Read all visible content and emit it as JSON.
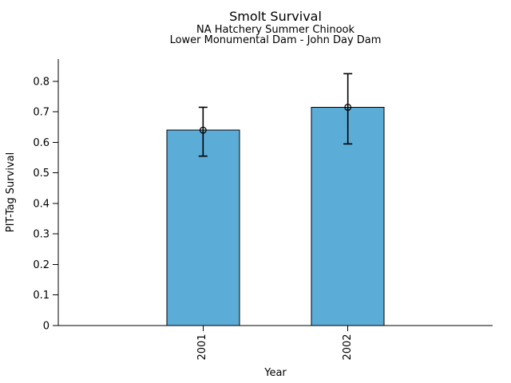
{
  "figure": {
    "background": "#ffffff",
    "text_color": "#000000"
  },
  "chart_data": {
    "type": "bar",
    "title": "Smolt Survival",
    "subtitle_lines": [
      "NA Hatchery Summer Chinook",
      "Lower Monumental Dam - John Day Dam"
    ],
    "xlabel": "Year",
    "ylabel": "PIT-Tag Survival",
    "categories": [
      "2001",
      "2002"
    ],
    "values": [
      0.64,
      0.715
    ],
    "error_low": [
      0.555,
      0.595
    ],
    "error_high": [
      0.715,
      0.825
    ],
    "ylim": [
      0,
      0.873
    ],
    "yticks": {
      "values": [
        0,
        0.1,
        0.2,
        0.3,
        0.4,
        0.5,
        0.6,
        0.7,
        0.8
      ],
      "labels": [
        "0",
        "0.1",
        "0.2",
        "0.3",
        "0.4",
        "0.5",
        "0.6",
        "0.7",
        "0.8"
      ]
    },
    "grid": false,
    "legend": "none",
    "x_tick_label_rotation_deg": 90,
    "marker": "open-circle",
    "bar_color": "#5bacd6",
    "bar_edge_color": "#000000",
    "error_bar_color": "#000000",
    "axis_color": "#000000"
  }
}
